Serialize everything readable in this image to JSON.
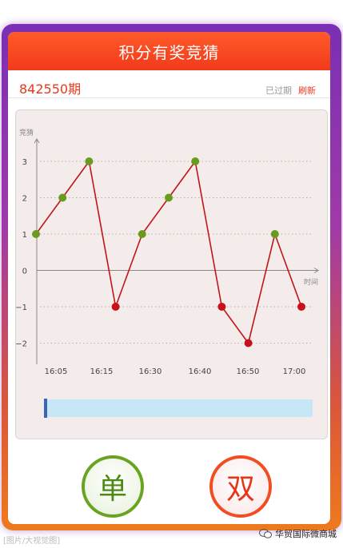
{
  "header": {
    "title": "积分有奖竞猜"
  },
  "issue": {
    "number": "842550期",
    "status": "已过期",
    "refresh_label": "刷新"
  },
  "chart_data": {
    "type": "line",
    "ylabel": "竞猜",
    "xlabel": "时间",
    "ylim": [
      -2.5,
      3.5
    ],
    "yticks": [
      3,
      2,
      1,
      0,
      -1,
      -2
    ],
    "xtick_labels": [
      "16:05",
      "16:15",
      "16:30",
      "16:40",
      "16:50",
      "17:00"
    ],
    "grid": true,
    "points": [
      {
        "x": 1,
        "y": 1
      },
      {
        "x": 2,
        "y": 2
      },
      {
        "x": 3,
        "y": 3
      },
      {
        "x": 4,
        "y": -1
      },
      {
        "x": 5,
        "y": 1
      },
      {
        "x": 6,
        "y": 2
      },
      {
        "x": 7,
        "y": 3
      },
      {
        "x": 8,
        "y": -1
      },
      {
        "x": 9,
        "y": -2
      },
      {
        "x": 10,
        "y": 1
      },
      {
        "x": 11,
        "y": -1
      }
    ],
    "colors": {
      "line": "#c0161a",
      "positive": "#6b9b1e",
      "negative": "#c8101a",
      "axis": "#888888"
    }
  },
  "slider": {
    "value": 0
  },
  "buttons": {
    "odd_label": "单",
    "even_label": "双"
  },
  "watermark": {
    "left": "[图片/大视觉图]",
    "right": "华贸国际微商城",
    "icon": "wechat-icon"
  }
}
